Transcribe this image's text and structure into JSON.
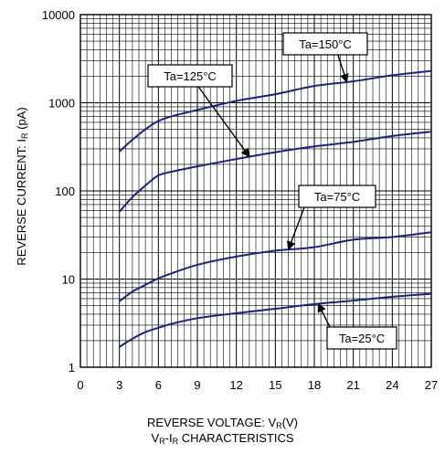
{
  "chart_data": {
    "type": "line",
    "title": "",
    "xlabel_prefix": "REVERSE VOLTAGE: V",
    "xlabel_sub": "R",
    "xlabel_suffix": "(V)",
    "ylabel_prefix": "REVERSE CURRENT: I",
    "ylabel_sub": "R",
    "ylabel_suffix": " (pA)",
    "caption_a": "V",
    "caption_a_sub": "R",
    "caption_b": "-I",
    "caption_b_sub": "R",
    "caption_c": " CHARACTERISTICS",
    "xlim": [
      0,
      27
    ],
    "ylim": [
      1,
      10000
    ],
    "yscale": "log",
    "grid": true,
    "x_ticks": [
      "0",
      "3",
      "6",
      "9",
      "12",
      "15",
      "18",
      "21",
      "24",
      "27"
    ],
    "y_ticks": [
      "1",
      "10",
      "100",
      "1000",
      "10000"
    ],
    "series": [
      {
        "name": "Ta=150°C",
        "x": [
          3,
          4,
          5,
          6,
          7,
          9,
          12,
          15,
          18,
          21,
          24,
          27
        ],
        "y": [
          280,
          380,
          500,
          620,
          700,
          830,
          1050,
          1250,
          1550,
          1750,
          2050,
          2300
        ]
      },
      {
        "name": "Ta=125°C",
        "x": [
          3,
          4,
          5,
          6,
          7,
          9,
          12,
          15,
          18,
          21,
          24,
          27
        ],
        "y": [
          58,
          85,
          115,
          150,
          165,
          190,
          230,
          275,
          320,
          360,
          420,
          470
        ]
      },
      {
        "name": "Ta=75°C",
        "x": [
          3,
          4,
          5,
          6,
          7,
          9,
          12,
          15,
          18,
          21,
          24,
          27
        ],
        "y": [
          5.6,
          7.2,
          8.6,
          10.2,
          11.6,
          14.5,
          18,
          21,
          23,
          28,
          30,
          34
        ]
      },
      {
        "name": "Ta=25°C",
        "x": [
          3,
          4,
          5,
          6,
          7,
          9,
          12,
          15,
          18,
          21,
          24,
          27
        ],
        "y": [
          1.7,
          2.1,
          2.5,
          2.8,
          3.1,
          3.6,
          4.1,
          4.6,
          5.2,
          5.7,
          6.3,
          6.8
        ]
      }
    ],
    "annotations": [
      {
        "text": "Ta=150°C",
        "series": 0,
        "at_x": 20.5
      },
      {
        "text": "Ta=125°C",
        "series": 1,
        "at_x": 13
      },
      {
        "text": "Ta=75°C",
        "series": 2,
        "at_x": 16
      },
      {
        "text": "Ta=25°C",
        "series": 3,
        "at_x": 18.3
      }
    ],
    "line_color": "#1a237e"
  }
}
